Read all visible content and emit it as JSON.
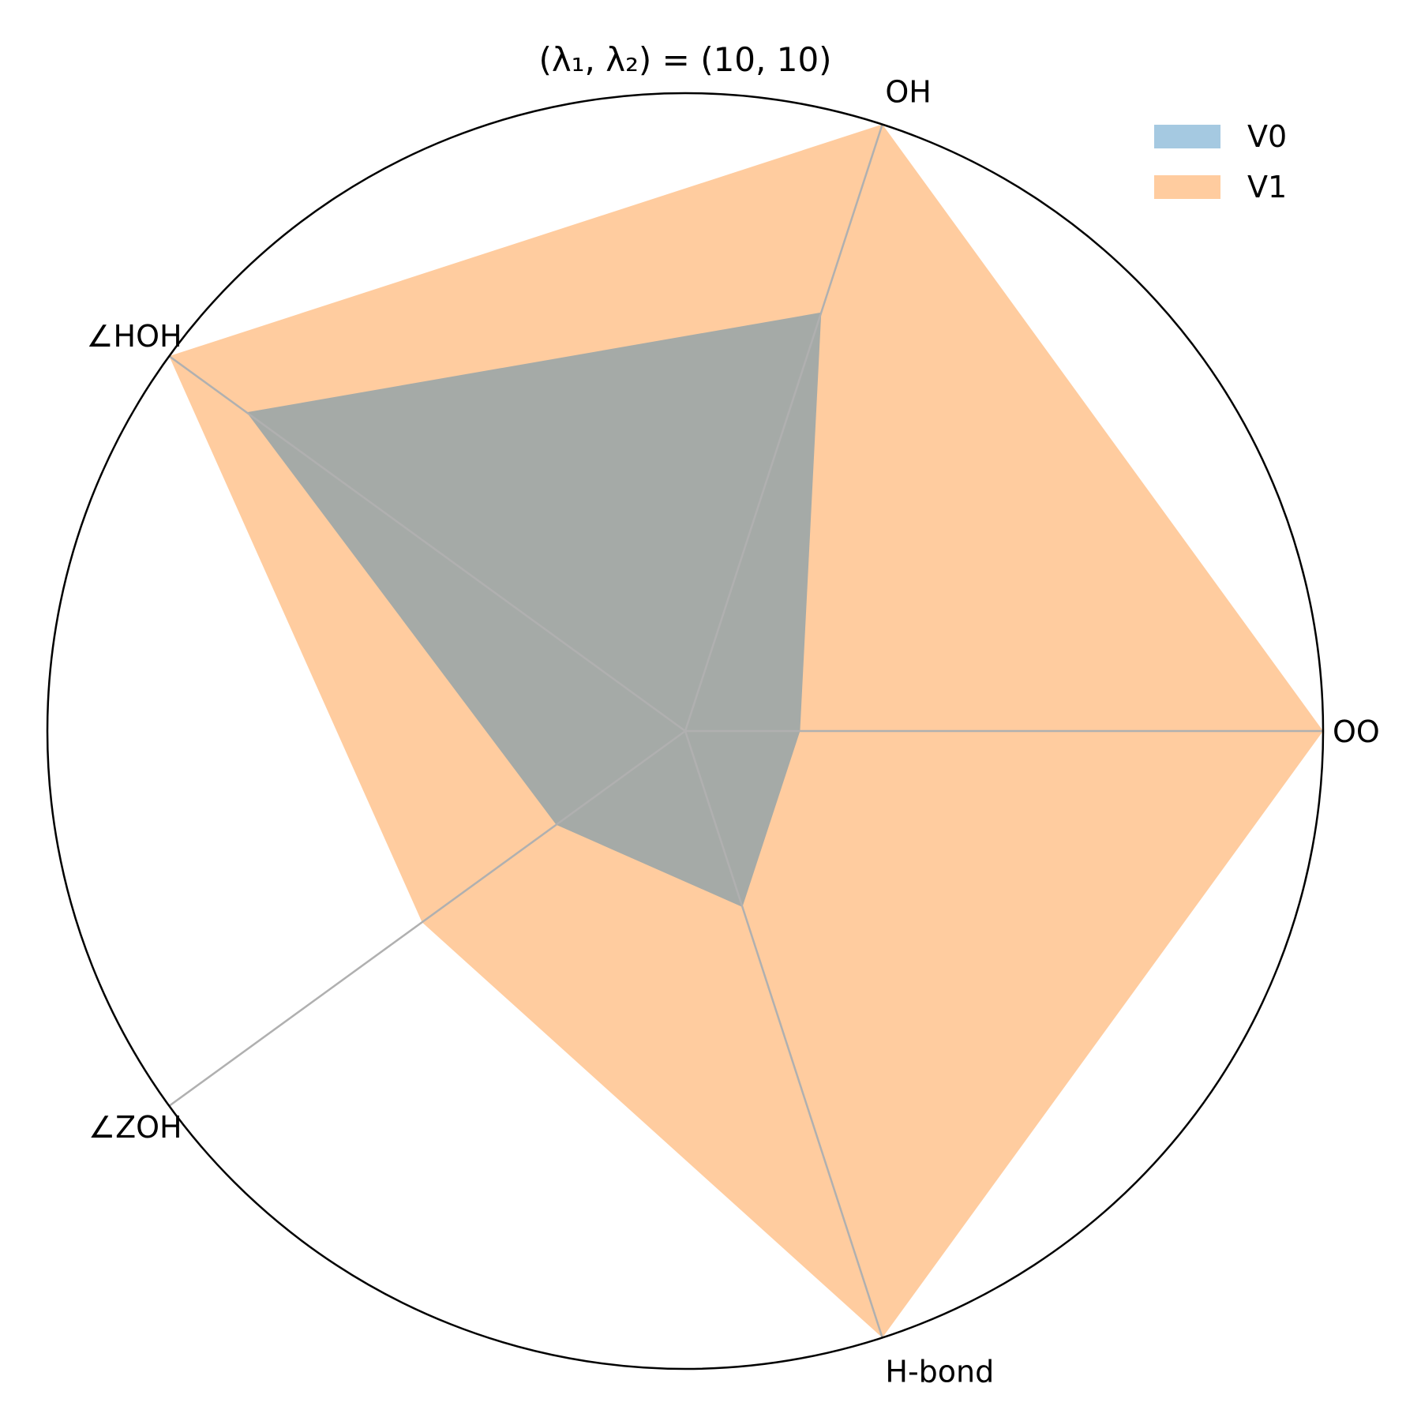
{
  "chart_data": {
    "type": "radar",
    "title": "(λ₁, λ₂) = (10, 10)",
    "axes": [
      "OO",
      "OH",
      "∠HOH",
      "∠ZOH",
      "H-bond"
    ],
    "range": [
      0,
      1
    ],
    "grid": false,
    "legend_position": "top-right",
    "series": [
      {
        "name": "V0",
        "color": "#1f77b4",
        "values": [
          0.18,
          0.69,
          0.85,
          0.25,
          0.29
        ]
      },
      {
        "name": "V1",
        "color": "#ff7f0e",
        "values": [
          1.0,
          1.0,
          1.0,
          0.51,
          1.0
        ]
      }
    ]
  }
}
